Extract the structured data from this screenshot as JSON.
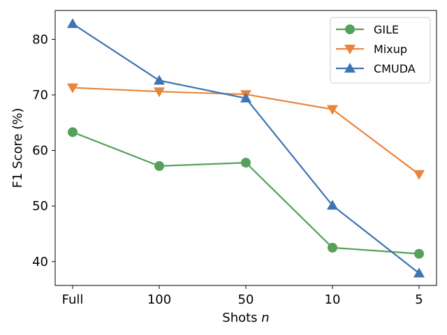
{
  "chart_data": {
    "type": "line",
    "categories": [
      "Full",
      "100",
      "50",
      "10",
      "5"
    ],
    "xlabel": "Shots",
    "xlabel_var": "n",
    "ylabel": "F1 Score (%)",
    "ylim": [
      35.7,
      85.2
    ],
    "yticks": [
      40,
      50,
      60,
      70,
      80
    ],
    "grid": false,
    "legend_position": "top-right",
    "series": [
      {
        "name": "GILE",
        "color": "#55a05a",
        "marker": "circle",
        "values": [
          63.3,
          57.2,
          57.8,
          42.5,
          41.4
        ]
      },
      {
        "name": "Mixup",
        "color": "#e8853d",
        "marker": "triangle-down",
        "values": [
          71.3,
          70.6,
          70.1,
          67.4,
          55.7
        ]
      },
      {
        "name": "CMUDA",
        "color": "#3d74b1",
        "marker": "triangle-up",
        "values": [
          82.8,
          72.6,
          69.4,
          50.1,
          37.9
        ]
      }
    ]
  }
}
